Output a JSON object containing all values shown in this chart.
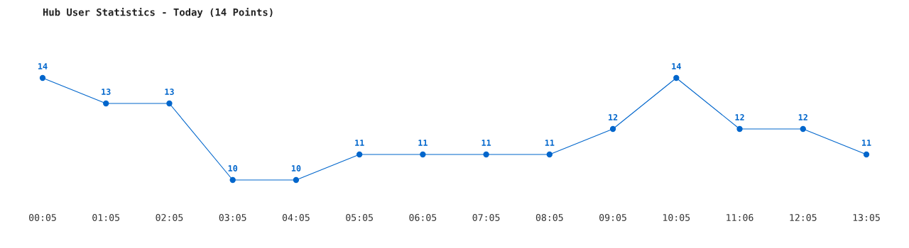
{
  "chart_data": {
    "type": "line",
    "title": "Hub User Statistics - Today (14 Points)",
    "categories": [
      "00:05",
      "01:05",
      "02:05",
      "03:05",
      "04:05",
      "05:05",
      "06:05",
      "07:05",
      "08:05",
      "09:05",
      "10:05",
      "11:06",
      "12:05",
      "13:05"
    ],
    "series": [
      {
        "color": "#0066cc",
        "values": [
          14,
          13,
          13,
          10,
          10,
          11,
          11,
          11,
          11,
          12,
          14,
          12,
          12,
          11
        ]
      }
    ],
    "data_labels": true,
    "tick_labels": "x",
    "grid": false,
    "legend": false,
    "marker": "circle",
    "line_style": "solid"
  }
}
